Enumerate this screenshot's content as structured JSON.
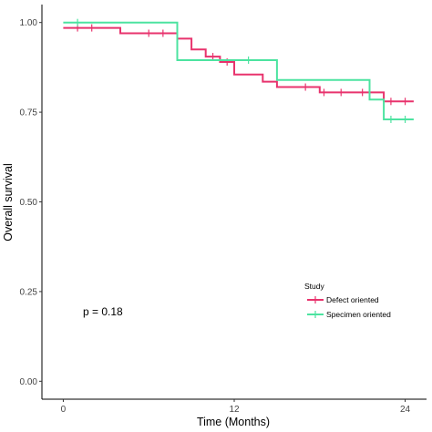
{
  "chart_data": {
    "type": "line",
    "subtype": "kaplan-meier step curve",
    "title": "",
    "xlabel": "Time (Months)",
    "ylabel": "Overall survival",
    "xlim": [
      -1.5,
      25.5
    ],
    "ylim": [
      -0.05,
      1.05
    ],
    "x_ticks": [
      0,
      12,
      24
    ],
    "y_ticks": [
      0.0,
      0.25,
      0.5,
      0.75,
      1.0
    ],
    "x_tick_labels": [
      "0",
      "12",
      "24"
    ],
    "y_tick_labels": [
      "0.00",
      "0.25",
      "0.50",
      "0.75",
      "1.00"
    ],
    "grid": false,
    "legend": {
      "title": "Study",
      "position": "right",
      "entries": [
        "Defect oriented",
        "Specimen oriented"
      ]
    },
    "annotation": "p = 0.18",
    "series": [
      {
        "name": "Defect oriented",
        "color": "#E8336D",
        "steps": [
          [
            0,
            0.985
          ],
          [
            4.0,
            0.97
          ],
          [
            8.0,
            0.955
          ],
          [
            9.0,
            0.925
          ],
          [
            10.0,
            0.905
          ],
          [
            11.0,
            0.89
          ],
          [
            12.0,
            0.855
          ],
          [
            14.0,
            0.835
          ],
          [
            15.0,
            0.82
          ],
          [
            18.0,
            0.805
          ],
          [
            22.5,
            0.78
          ],
          [
            24.6,
            0.78
          ]
        ],
        "censored": [
          [
            1.0,
            0.985
          ],
          [
            2.0,
            0.985
          ],
          [
            6.0,
            0.97
          ],
          [
            7.0,
            0.97
          ],
          [
            10.5,
            0.905
          ],
          [
            11.5,
            0.89
          ],
          [
            17.0,
            0.82
          ],
          [
            18.3,
            0.805
          ],
          [
            19.5,
            0.805
          ],
          [
            21.0,
            0.805
          ],
          [
            23.0,
            0.78
          ],
          [
            24.0,
            0.78
          ]
        ]
      },
      {
        "name": "Specimen oriented",
        "color": "#4CE3A0",
        "steps": [
          [
            0,
            1.0
          ],
          [
            8.0,
            0.895
          ],
          [
            15.0,
            0.84
          ],
          [
            21.5,
            0.785
          ],
          [
            22.5,
            0.73
          ],
          [
            24.6,
            0.73
          ]
        ],
        "censored": [
          [
            1.0,
            1.0
          ],
          [
            13.0,
            0.895
          ],
          [
            23.0,
            0.73
          ],
          [
            24.0,
            0.73
          ]
        ]
      }
    ]
  }
}
